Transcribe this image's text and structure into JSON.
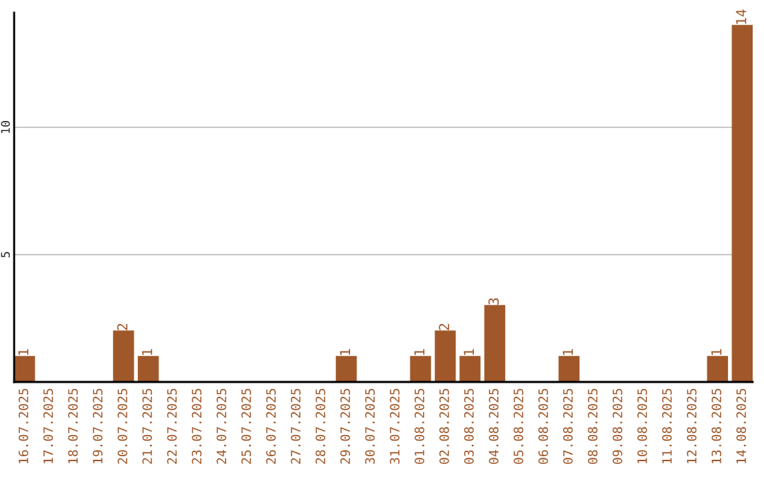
{
  "chart_data": {
    "type": "bar",
    "categories": [
      "16.07.2025",
      "17.07.2025",
      "18.07.2025",
      "19.07.2025",
      "20.07.2025",
      "21.07.2025",
      "22.07.2025",
      "23.07.2025",
      "24.07.2025",
      "25.07.2025",
      "26.07.2025",
      "27.07.2025",
      "28.07.2025",
      "29.07.2025",
      "30.07.2025",
      "31.07.2025",
      "01.08.2025",
      "02.08.2025",
      "03.08.2025",
      "04.08.2025",
      "05.08.2025",
      "06.08.2025",
      "07.08.2025",
      "08.08.2025",
      "09.08.2025",
      "10.08.2025",
      "11.08.2025",
      "12.08.2025",
      "13.08.2025",
      "14.08.2025"
    ],
    "values": [
      1,
      0,
      0,
      0,
      2,
      1,
      0,
      0,
      0,
      0,
      0,
      0,
      0,
      1,
      0,
      0,
      1,
      2,
      1,
      3,
      0,
      0,
      1,
      0,
      0,
      0,
      0,
      0,
      1,
      14
    ],
    "value_labels": [
      "1",
      null,
      null,
      null,
      "2",
      "1",
      null,
      null,
      null,
      null,
      null,
      null,
      null,
      "1",
      null,
      null,
      "1",
      "2",
      "1",
      "3",
      null,
      null,
      "1",
      null,
      null,
      null,
      null,
      null,
      "1",
      "14"
    ],
    "color": "#a0582a",
    "ylim": [
      0,
      14.5
    ],
    "yticks": [
      5,
      10
    ],
    "grid": "y",
    "legend": false
  }
}
